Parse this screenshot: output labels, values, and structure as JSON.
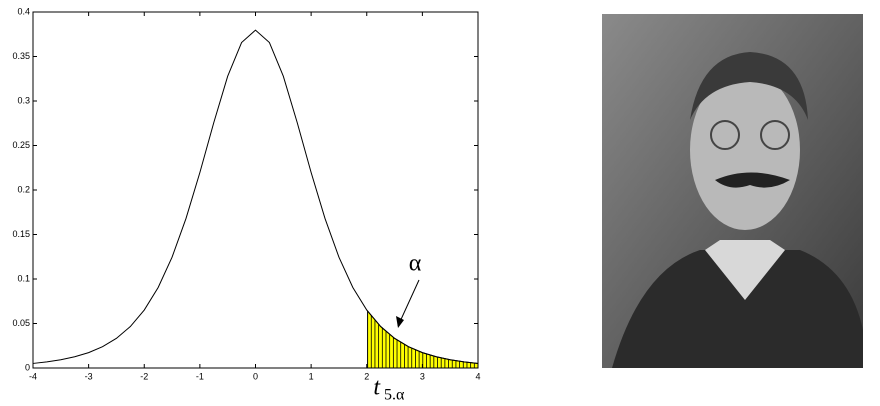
{
  "chart_data": {
    "type": "line",
    "x": [
      -4,
      -3.75,
      -3.5,
      -3.25,
      -3,
      -2.75,
      -2.5,
      -2.25,
      -2,
      -1.75,
      -1.5,
      -1.25,
      -1,
      -0.75,
      -0.5,
      -0.25,
      0,
      0.25,
      0.5,
      0.75,
      1,
      1.25,
      1.5,
      1.75,
      2,
      2.25,
      2.5,
      2.75,
      3,
      3.25,
      3.5,
      3.75,
      4
    ],
    "values": [
      0.00512,
      0.00685,
      0.00925,
      0.0126,
      0.0173,
      0.0239,
      0.0333,
      0.0466,
      0.0651,
      0.0905,
      0.1245,
      0.1679,
      0.2197,
      0.2757,
      0.3279,
      0.3657,
      0.3796,
      0.3657,
      0.3279,
      0.2757,
      0.2197,
      0.1679,
      0.1245,
      0.0905,
      0.0651,
      0.0466,
      0.0333,
      0.0239,
      0.0173,
      0.0126,
      0.00925,
      0.00685,
      0.00512
    ],
    "color": "#000000",
    "xlim": [
      -4,
      4
    ],
    "ylim": [
      0,
      0.4
    ],
    "xticks": [
      -4,
      -3,
      -2,
      -1,
      0,
      1,
      2,
      3,
      4
    ],
    "yticks": [
      0,
      0.05,
      0.1,
      0.15,
      0.2,
      0.25,
      0.3,
      0.35,
      0.4
    ],
    "shaded_region": {
      "xlim": [
        2.015,
        4
      ],
      "color": "#ffff00"
    },
    "annotation": "α",
    "x_label": "t",
    "x_label_subscript": "5.α"
  }
}
